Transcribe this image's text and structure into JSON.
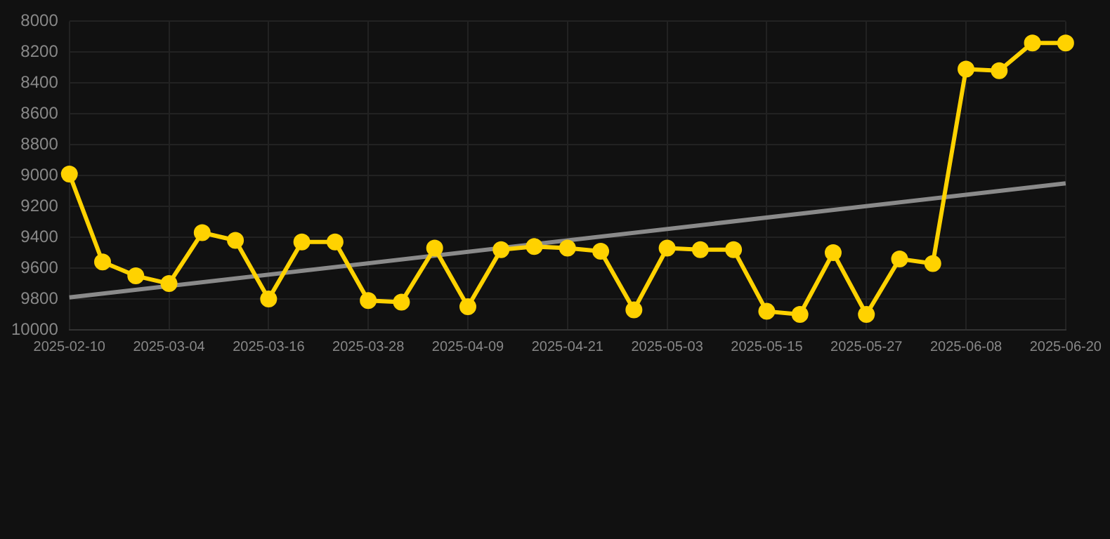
{
  "chart_data": {
    "type": "line",
    "categories": [
      "2025-02-10",
      null,
      null,
      "2025-03-04",
      null,
      null,
      "2025-03-16",
      null,
      null,
      "2025-03-28",
      null,
      null,
      "2025-04-09",
      null,
      null,
      "2025-04-21",
      null,
      null,
      "2025-05-03",
      null,
      null,
      "2025-05-15",
      null,
      null,
      "2025-05-27",
      null,
      null,
      "2025-06-08",
      null,
      null,
      "2025-06-20"
    ],
    "series": [
      {
        "color": "#ffd200",
        "marker": "circle",
        "values": [
          8990,
          9560,
          9650,
          9700,
          9370,
          9420,
          9800,
          9430,
          9430,
          9810,
          9820,
          9470,
          9850,
          9480,
          9460,
          9470,
          9490,
          9870,
          9470,
          9480,
          9480,
          9880,
          9900,
          9500,
          9900,
          9540,
          9570,
          8310,
          8320,
          8140,
          8140
        ]
      },
      {
        "type": "line",
        "color": "#8a8a8a",
        "marker": "none",
        "values": [
          9790,
          null,
          null,
          null,
          null,
          null,
          null,
          null,
          null,
          null,
          null,
          null,
          null,
          null,
          null,
          null,
          null,
          null,
          null,
          null,
          null,
          null,
          null,
          null,
          null,
          null,
          null,
          null,
          null,
          null,
          9050
        ]
      }
    ],
    "ylim": [
      10000,
      8000
    ],
    "yticks": [
      8000,
      8200,
      8400,
      8600,
      8800,
      9000,
      9200,
      9400,
      9600,
      9800,
      10000
    ],
    "grid": true,
    "legend": false
  }
}
